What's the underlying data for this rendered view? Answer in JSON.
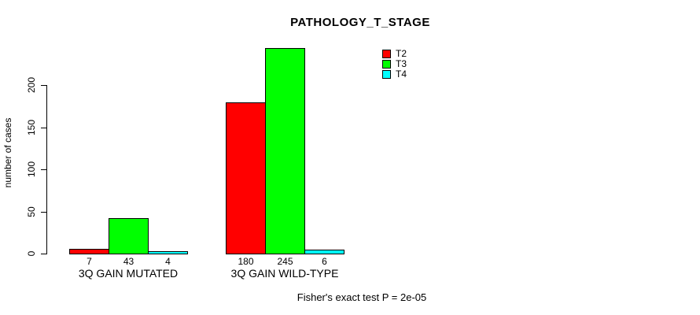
{
  "chart_data": {
    "type": "bar",
    "title": "PATHOLOGY_T_STAGE",
    "ylabel": "number of cases",
    "xlabel": "",
    "categories": [
      "3Q GAIN MUTATED",
      "3Q GAIN WILD-TYPE"
    ],
    "series": [
      {
        "name": "T2",
        "color": "#ff0000",
        "values": [
          7,
          180
        ]
      },
      {
        "name": "T3",
        "color": "#00ff00",
        "values": [
          43,
          245
        ]
      },
      {
        "name": "T4",
        "color": "#00ffff",
        "values": [
          4,
          6
        ]
      }
    ],
    "yticks": [
      0,
      50,
      100,
      150,
      200
    ],
    "ylim": [
      0,
      200
    ],
    "grid": false,
    "show_bar_value_labels": true,
    "legend_position": "top-right",
    "legend_entries": [
      "T2",
      "T3",
      "T4"
    ],
    "annotation": "Fisher's exact test P = 2e-05",
    "axis_color": "#000000",
    "bar_border_color": "#000000",
    "text_color": "#000000",
    "background_color": "#ffffff"
  }
}
